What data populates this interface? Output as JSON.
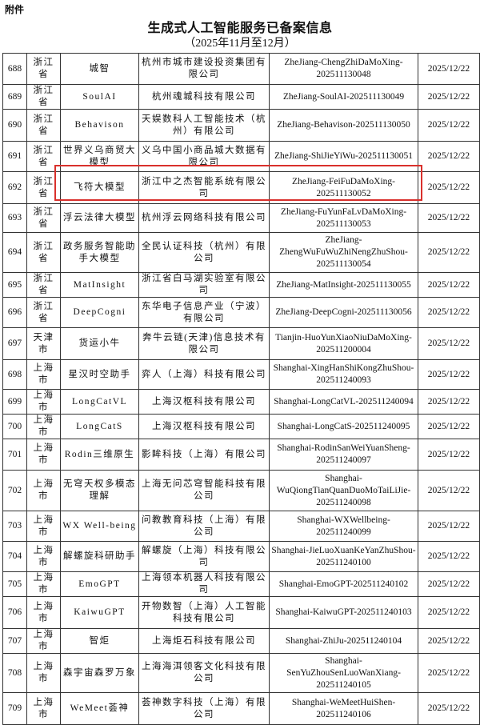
{
  "header": {
    "attachment_label": "附件",
    "title": "生成式人工智能服务已备案信息",
    "subtitle": "（2025年11月至12月）"
  },
  "highlight": {
    "row_index": 692,
    "color": "#d9302c"
  },
  "rows": [
    {
      "no": "688",
      "region": "浙江省",
      "name": "城智",
      "company": "杭州市城市建设投资集团有限公司",
      "code": "ZheJiang-ChengZhiDaMoXing-202511130048",
      "date": "2025/12/22"
    },
    {
      "no": "689",
      "region": "浙江省",
      "name": "SoulAI",
      "company": "杭州魂城科技有限公司",
      "code": "ZheJiang-SoulAI-202511130049",
      "date": "2025/12/22"
    },
    {
      "no": "690",
      "region": "浙江省",
      "name": "Behavison",
      "company": "天娱数科人工智能技术（杭州）有限公司",
      "code": "ZheJiang-Behavison-202511130050",
      "date": "2025/12/22"
    },
    {
      "no": "691",
      "region": "浙江省",
      "name": "世界义乌商贸大模型",
      "company": "义乌中国小商品城大数据有限公司",
      "code": "ZheJiang-ShiJieYiWu-202511130051",
      "date": "2025/12/22"
    },
    {
      "no": "692",
      "region": "浙江省",
      "name": "飞符大模型",
      "company": "浙江中之杰智能系统有限公司",
      "code": "ZheJiang-FeiFuDaMoXing-202511130052",
      "date": "2025/12/22"
    },
    {
      "no": "693",
      "region": "浙江省",
      "name": "浮云法律大模型",
      "company": "杭州浮云网络科技有限公司",
      "code": "ZheJiang-FuYunFaLvDaMoXing-202511130053",
      "date": "2025/12/22"
    },
    {
      "no": "694",
      "region": "浙江省",
      "name": "政务服务智能助手大模型",
      "company": "全民认证科技（杭州）有限公司",
      "code": "ZheJiang-ZhengWuFuWuZhiNengZhuShou-202511130054",
      "date": "2025/12/22"
    },
    {
      "no": "695",
      "region": "浙江省",
      "name": "MatInsight",
      "company": "浙江省白马湖实验室有限公司",
      "code": "ZheJiang-MatInsight-202511130055",
      "date": "2025/12/22"
    },
    {
      "no": "696",
      "region": "浙江省",
      "name": "DeepCogni",
      "company": "东华电子信息产业（宁波）有限公司",
      "code": "ZheJiang-DeepCogni-202511130056",
      "date": "2025/12/22"
    },
    {
      "no": "697",
      "region": "天津市",
      "name": "货运小牛",
      "company": "奔牛云链(天津)信息技术有限公司",
      "code": "Tianjin-HuoYunXiaoNiuDaMoXing-202511200004",
      "date": "2025/12/22"
    },
    {
      "no": "698",
      "region": "上海市",
      "name": "星汉时空助手",
      "company": "弈人（上海）科技有限公司",
      "code": "Shanghai-XingHanShiKongZhuShou-202511240093",
      "date": "2025/12/22"
    },
    {
      "no": "699",
      "region": "上海市",
      "name": "LongCatVL",
      "company": "上海汉枢科技有限公司",
      "code": "Shanghai-LongCatVL-202511240094",
      "date": "2025/12/22"
    },
    {
      "no": "700",
      "region": "上海市",
      "name": "LongCatS",
      "company": "上海汉枢科技有限公司",
      "code": "Shanghai-LongCatS-202511240095",
      "date": "2025/12/22"
    },
    {
      "no": "701",
      "region": "上海市",
      "name": "Rodin三维原生",
      "company": "影眸科技（上海）有限公司",
      "code": "Shanghai-RodinSanWeiYuanSheng-202511240097",
      "date": "2025/12/22"
    },
    {
      "no": "702",
      "region": "上海市",
      "name": "无穹天权多模态理解",
      "company": "上海无问芯穹智能科技有限公司",
      "code": "Shanghai-WuQiongTianQuanDuoMoTaiLiJie-202511240098",
      "date": "2025/12/22"
    },
    {
      "no": "703",
      "region": "上海市",
      "name": "WX Well-being",
      "company": "问教教育科技（上海）有限公司",
      "code": "Shanghai-WXWellbeing-202511240099",
      "date": "2025/12/22"
    },
    {
      "no": "704",
      "region": "上海市",
      "name": "解螺旋科研助手",
      "company": "解螺旋（上海）科技有限公司",
      "code": "Shanghai-JieLuoXuanKeYanZhuShou-202511240100",
      "date": "2025/12/22"
    },
    {
      "no": "705",
      "region": "上海市",
      "name": "EmoGPT",
      "company": "上海领本机器人科技有限公司",
      "code": "Shanghai-EmoGPT-202511240102",
      "date": "2025/12/22"
    },
    {
      "no": "706",
      "region": "上海市",
      "name": "KaiwuGPT",
      "company": "开物数智（上海）人工智能科技有限公司",
      "code": "Shanghai-KaiwuGPT-202511240103",
      "date": "2025/12/22"
    },
    {
      "no": "707",
      "region": "上海市",
      "name": "智炬",
      "company": "上海炬石科技有限公司",
      "code": "Shanghai-ZhiJu-202511240104",
      "date": "2025/12/22"
    },
    {
      "no": "708",
      "region": "上海市",
      "name": "森宇宙森罗万象",
      "company": "上海海洱领客文化科技有限公司",
      "code": "Shanghai-SenYuZhouSenLuoWanXiang-202511240105",
      "date": "2025/12/22"
    },
    {
      "no": "709",
      "region": "上海市",
      "name": "WeMeet荟神",
      "company": "荟神数字科技（上海）有限公司",
      "code": "Shanghai-WeMeetHuiShen-202511240106",
      "date": "2025/12/22"
    }
  ]
}
